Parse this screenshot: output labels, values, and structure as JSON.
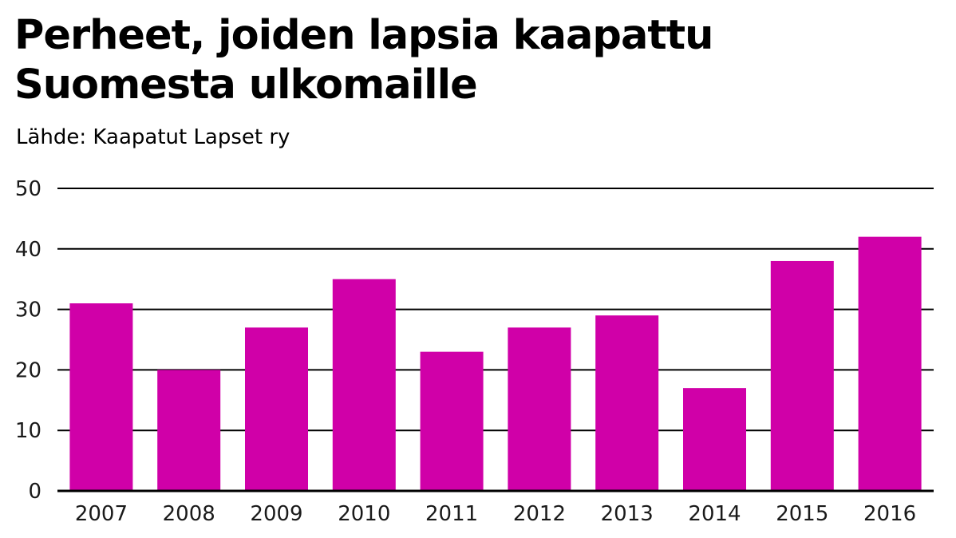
{
  "title_lines": [
    "Perheet, joiden lapsia kaapattu",
    "Suomesta ulkomaille"
  ],
  "source": "Lähde: Kaapatut Lapset ry",
  "chart_data": {
    "type": "bar",
    "title": "Perheet, joiden lapsia kaapattu Suomesta ulkomaille",
    "subtitle": "Lähde: Kaapatut Lapset ry",
    "categories": [
      "2007",
      "2008",
      "2009",
      "2010",
      "2011",
      "2012",
      "2013",
      "2014",
      "2015",
      "2016"
    ],
    "values": [
      31,
      20,
      27,
      35,
      23,
      27,
      29,
      17,
      38,
      42
    ],
    "xlabel": "",
    "ylabel": "",
    "ylim": [
      0,
      50
    ],
    "yticks": [
      "0",
      "10",
      "20",
      "30",
      "40",
      "50"
    ],
    "grid": true,
    "bar_color": "#d000a8"
  }
}
